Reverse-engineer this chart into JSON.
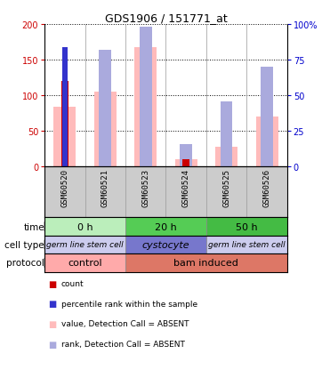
{
  "title": "GDS1906 / 151771_at",
  "samples": [
    "GSM60520",
    "GSM60521",
    "GSM60523",
    "GSM60524",
    "GSM60525",
    "GSM60526"
  ],
  "count_values": [
    120,
    0,
    0,
    10,
    0,
    0
  ],
  "count_color": "#cc0000",
  "rank_values": [
    84,
    0,
    0,
    0,
    0,
    0
  ],
  "rank_color": "#3333cc",
  "value_absent": [
    84,
    106,
    168,
    10,
    28,
    70
  ],
  "value_absent_color": "#ffbbbb",
  "rank_absent": [
    0,
    82,
    98,
    16,
    46,
    70
  ],
  "rank_absent_color": "#aaaadd",
  "ylim_left": [
    0,
    200
  ],
  "ylim_right": [
    0,
    100
  ],
  "yticks_left": [
    0,
    50,
    100,
    150,
    200
  ],
  "yticks_right": [
    0,
    25,
    50,
    75,
    100
  ],
  "yticklabels_right": [
    "0",
    "25",
    "50",
    "75",
    "100%"
  ],
  "left_tick_color": "#cc0000",
  "right_tick_color": "#0000cc",
  "bg_color": "#ffffff",
  "sample_bg_color": "#cccccc",
  "time_groups": [
    {
      "label": "0 h",
      "start": 0,
      "end": 2,
      "color": "#bbeebb"
    },
    {
      "label": "20 h",
      "start": 2,
      "end": 4,
      "color": "#55cc55"
    },
    {
      "label": "50 h",
      "start": 4,
      "end": 6,
      "color": "#44bb44"
    }
  ],
  "cell_groups": [
    {
      "label": "germ line stem cell",
      "start": 0,
      "end": 2,
      "color": "#ccccee",
      "fontsize": 6.5
    },
    {
      "label": "cystocyte",
      "start": 2,
      "end": 4,
      "color": "#7777cc",
      "fontsize": 8
    },
    {
      "label": "germ line stem cell",
      "start": 4,
      "end": 6,
      "color": "#ccccee",
      "fontsize": 6.5
    }
  ],
  "proto_groups": [
    {
      "label": "control",
      "start": 0,
      "end": 2,
      "color": "#ffaaaa"
    },
    {
      "label": "bam induced",
      "start": 2,
      "end": 6,
      "color": "#dd7766"
    }
  ],
  "legend_items": [
    {
      "color": "#cc0000",
      "label": "count"
    },
    {
      "color": "#3333cc",
      "label": "percentile rank within the sample"
    },
    {
      "color": "#ffbbbb",
      "label": "value, Detection Call = ABSENT"
    },
    {
      "color": "#aaaadd",
      "label": "rank, Detection Call = ABSENT"
    }
  ]
}
